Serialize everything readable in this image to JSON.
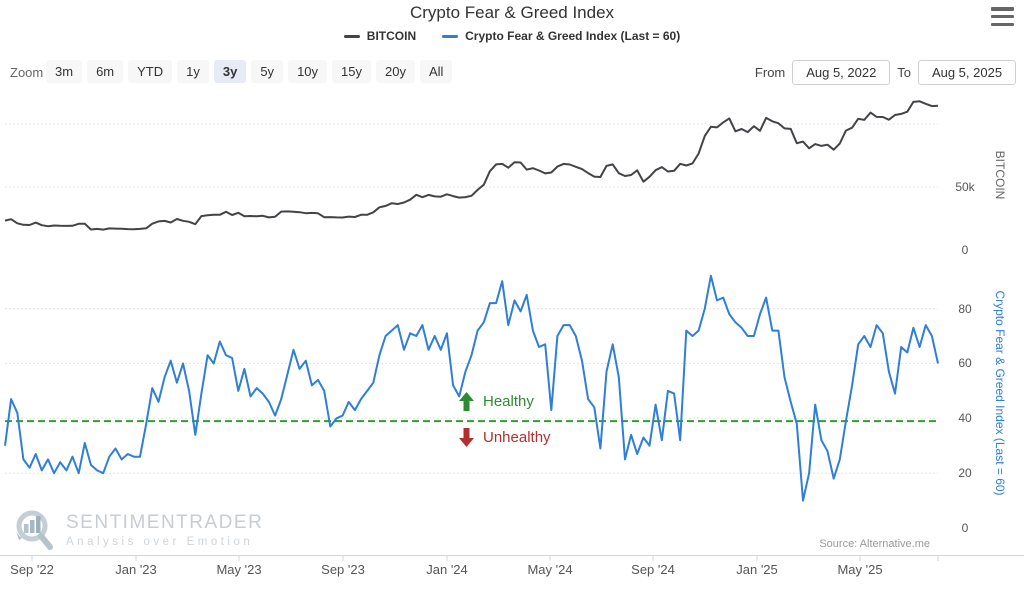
{
  "header": {
    "title": "Crypto Fear & Greed Index"
  },
  "legend": {
    "items": [
      {
        "label": "BITCOIN",
        "color": "#434348"
      },
      {
        "label": "Crypto Fear & Greed Index (Last = 60)",
        "color": "#2f7ed8"
      }
    ]
  },
  "toolbar": {
    "zoom_label": "Zoom",
    "ranges": [
      "3m",
      "6m",
      "YTD",
      "1y",
      "3y",
      "5y",
      "10y",
      "15y",
      "20y",
      "All"
    ],
    "selected_range": "3y",
    "from_label": "From",
    "from_value": "Aug 5, 2022",
    "to_label": "To",
    "to_value": "Aug 5, 2025"
  },
  "icons": {
    "menu": "hamburger",
    "healthy": "arrow-up-green",
    "unhealthy": "arrow-down-red"
  },
  "watermark": {
    "name": "SENTIMENTRADER",
    "tagline": "Analysis over Emotion"
  },
  "source_note": "Source: Alternative.me",
  "chart_data": [
    {
      "type": "line",
      "name": "BITCOIN",
      "color": "#434348",
      "ylabel": "BITCOIN",
      "unit": "USD thousands",
      "ylim": [
        0,
        119
      ],
      "yticks": [
        {
          "value": 0,
          "label": "0"
        },
        {
          "value": 50,
          "label": "50k"
        }
      ],
      "gridlines": [
        50,
        100
      ],
      "x_range": [
        "Aug 5, 2022",
        "Aug 5, 2025"
      ],
      "xticklabels": [
        "Sep '22",
        "Jan '23",
        "May '23",
        "Sep '23",
        "Jan '24",
        "May '24",
        "Sep '24",
        "Jan '25",
        "May '25"
      ],
      "values": [
        23.3,
        24.4,
        21.2,
        20,
        19.8,
        21.7,
        19.7,
        18.9,
        19.4,
        19.2,
        19.1,
        19.2,
        20.8,
        20.9,
        16.3,
        16.7,
        16.2,
        17.1,
        17,
        16.8,
        16.6,
        16.5,
        16.7,
        17.2,
        20.9,
        22.7,
        23.1,
        21.8,
        24.6,
        23.2,
        22.4,
        20.5,
        26.9,
        27.5,
        28,
        27.9,
        30.3,
        27.8,
        29.5,
        26.8,
        27,
        26.7,
        27.1,
        25.9,
        26.3,
        30.5,
        30.6,
        30.3,
        30,
        29.2,
        29.4,
        29.1,
        26,
        26.1,
        25.9,
        25.8,
        26.5,
        26.2,
        27.9,
        27.9,
        29.9,
        33.9,
        35,
        37.1,
        36.5,
        37.7,
        39.9,
        43.8,
        41.9,
        43.7,
        42.5,
        42.3,
        44.2,
        42.8,
        41.6,
        42,
        43,
        47.7,
        51.8,
        62.5,
        67.9,
        68.3,
        65.3,
        69.6,
        69.4,
        63.8,
        64.9,
        63.1,
        60.8,
        61.5,
        66.2,
        68.3,
        67.8,
        66,
        64.2,
        61,
        58.2,
        57.9,
        66.7,
        67.9,
        60.9,
        58.7,
        59.5,
        63.2,
        54.2,
        58.1,
        63.3,
        65.8,
        62.3,
        62.8,
        68.4,
        67,
        68.7,
        76.5,
        90.5,
        97.7,
        97.3,
        101.2,
        104.4,
        94.2,
        96,
        93.5,
        98.2,
        94.6,
        104.8,
        102.1,
        100.6,
        96.5,
        96.1,
        84.7,
        86,
        80.7,
        84,
        82.6,
        83.5,
        79.6,
        84.5,
        94.7,
        97,
        104.1,
        103.2,
        109,
        105.6,
        105.5,
        103.4,
        107.1,
        108,
        109.7,
        117.5,
        118,
        116,
        114.2,
        114.5
      ]
    },
    {
      "type": "line",
      "name": "Crypto Fear & Greed Index",
      "last_value": 60,
      "color": "#2f7ed8",
      "ylabel": "Crypto Fear & Greed Index (Last = 60)",
      "ylim": [
        0,
        97
      ],
      "yticks": [
        {
          "value": 0,
          "label": "0"
        },
        {
          "value": 20,
          "label": "20"
        },
        {
          "value": 40,
          "label": "40"
        },
        {
          "value": 60,
          "label": "60"
        },
        {
          "value": 80,
          "label": "80"
        }
      ],
      "gridlines": [
        20,
        40,
        60,
        80
      ],
      "threshold": {
        "value": 39,
        "color": "#2ca02c",
        "style": "dashed",
        "above_label": "Healthy",
        "below_label": "Unhealthy"
      },
      "values": [
        30,
        47,
        42,
        25,
        22,
        27,
        21,
        25,
        20,
        24,
        21,
        26,
        20,
        31,
        23,
        21,
        20,
        26,
        29,
        25,
        27,
        26,
        26,
        38,
        51,
        46,
        55,
        61,
        53,
        60,
        50,
        34,
        49,
        63,
        60,
        68,
        63,
        62,
        50,
        58,
        48,
        51,
        49,
        46,
        41,
        47,
        56,
        65,
        58,
        61,
        52,
        54,
        50,
        37,
        40,
        41,
        46,
        43,
        47,
        50,
        53,
        63,
        70,
        72,
        74,
        65,
        71,
        70,
        74,
        65,
        70,
        65,
        71,
        52,
        48,
        57,
        63,
        72,
        75,
        82,
        82,
        90,
        74,
        83,
        79,
        85,
        72,
        66,
        67,
        43,
        70,
        74,
        74,
        70,
        61,
        47,
        44,
        29,
        57,
        67,
        55,
        25,
        34,
        27,
        33,
        30,
        45,
        32,
        50,
        49,
        32,
        72,
        70,
        72,
        80,
        92,
        83,
        84,
        78,
        75,
        73,
        70,
        70,
        78,
        84,
        72,
        72,
        55,
        46,
        38,
        10,
        20,
        45,
        32,
        28,
        18,
        25,
        39,
        52,
        67,
        70,
        66,
        74,
        71,
        57,
        49,
        66,
        64,
        73,
        66,
        74,
        70,
        60
      ]
    }
  ]
}
